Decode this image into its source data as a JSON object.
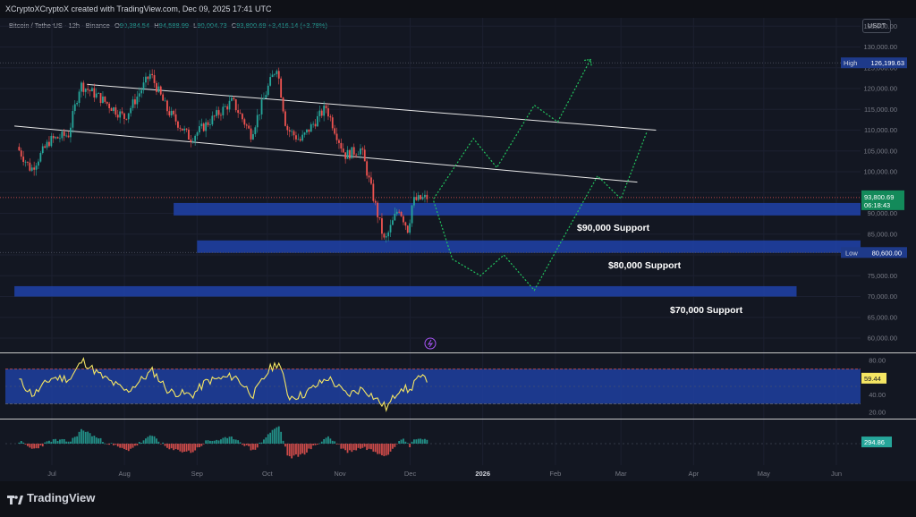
{
  "header": {
    "credit": "XCryptoXCryptoX created with TradingView.com, Dec 09, 2025 17:41 UTC",
    "symbol": "Bitcoin / TetherUS · 12h · Binance",
    "ohlc": [
      {
        "label": "O",
        "value": "90,384.54"
      },
      {
        "label": "H",
        "value": "94,588.99"
      },
      {
        "label": "L",
        "value": "90,004.73"
      },
      {
        "label": "C",
        "value": "93,800.69"
      }
    ],
    "change": "+3,416.14 (+3.78%)",
    "currency": "USDT"
  },
  "footer": {
    "brand": "TradingView"
  },
  "colors": {
    "background": "#131722",
    "up": "#26a69a",
    "down": "#ef5350",
    "zone": "#1e3fa0",
    "projection": "#22c55e",
    "rsi": "#f5e663"
  },
  "chart_data": [
    {
      "type": "candlestick",
      "ylim": [
        57000,
        137000
      ],
      "x_ticks": [
        "Jul",
        "Aug",
        "Sep",
        "Oct",
        "Nov",
        "Dec",
        "2026",
        "Feb",
        "Mar",
        "Apr",
        "May",
        "Jun"
      ],
      "y_ticks": [
        "60,000.00",
        "65,000.00",
        "70,000.00",
        "75,000.00",
        "80,000.00",
        "85,000.00",
        "90,000.00",
        "95,000.00",
        "100,000.00",
        "105,000.00",
        "110,000.00",
        "115,000.00",
        "120,000.00",
        "125,000.00",
        "130,000.00",
        "135,000.00"
      ],
      "price_path": [
        [
          "2025-06-17",
          106000
        ],
        [
          "2025-06-23",
          100500
        ],
        [
          "2025-07-01",
          107500
        ],
        [
          "2025-07-09",
          109000
        ],
        [
          "2025-07-14",
          121000
        ],
        [
          "2025-07-22",
          118000
        ],
        [
          "2025-08-02",
          113000
        ],
        [
          "2025-08-13",
          123500
        ],
        [
          "2025-08-20",
          115000
        ],
        [
          "2025-08-30",
          108000
        ],
        [
          "2025-09-05",
          111000
        ],
        [
          "2025-09-17",
          117000
        ],
        [
          "2025-09-25",
          109000
        ],
        [
          "2025-10-02",
          120000
        ],
        [
          "2025-10-06",
          125500
        ],
        [
          "2025-10-10",
          110500
        ],
        [
          "2025-10-16",
          107500
        ],
        [
          "2025-10-27",
          115500
        ],
        [
          "2025-11-04",
          104000
        ],
        [
          "2025-11-11",
          105500
        ],
        [
          "2025-11-21",
          83000
        ],
        [
          "2025-11-27",
          91500
        ],
        [
          "2025-12-01",
          86000
        ],
        [
          "2025-12-03",
          93000
        ],
        [
          "2025-12-09",
          93800
        ]
      ],
      "channel_lines": [
        {
          "from": [
            "2025-07-16",
            121000
          ],
          "to": [
            "2026-03-16",
            110000
          ]
        },
        {
          "from": [
            "2025-06-15",
            111000
          ],
          "to": [
            "2026-03-08",
            97500
          ]
        }
      ],
      "support_zones": [
        {
          "label": "$90,000 Support",
          "from": "2025-08-22",
          "low": 89500,
          "high": 92500
        },
        {
          "label": "$80,000 Support",
          "from": "2025-09-01",
          "low": 80500,
          "high": 83500
        },
        {
          "label": "$70,000 Support",
          "from": "2025-06-15",
          "to": "2026-05-15",
          "low": 70000,
          "high": 72500
        }
      ],
      "projection_bullish": [
        [
          "2025-12-11",
          93500
        ],
        [
          "2025-12-28",
          108000
        ],
        [
          "2026-01-07",
          101000
        ],
        [
          "2026-01-23",
          116000
        ],
        [
          "2026-02-02",
          112000
        ],
        [
          "2026-02-16",
          127000
        ]
      ],
      "projection_bearish": [
        [
          "2025-12-11",
          93000
        ],
        [
          "2025-12-19",
          79000
        ],
        [
          "2025-12-31",
          75000
        ],
        [
          "2026-01-10",
          80000
        ],
        [
          "2026-01-23",
          71500
        ],
        [
          "2026-02-19",
          99000
        ],
        [
          "2026-02-29",
          93500
        ],
        [
          "2026-03-12",
          109500
        ]
      ],
      "markers": [
        {
          "label": "High",
          "value": "126,199.63",
          "price": 126199.63
        },
        {
          "label": "Low",
          "value": "80,600.00",
          "price": 80600
        },
        {
          "label": "",
          "value": "93,800.69",
          "price": 93800.69
        },
        {
          "label": "",
          "value": "06:18:43",
          "price": 93800.69
        }
      ]
    },
    {
      "type": "line",
      "ylim": [
        15,
        85
      ],
      "y_ticks": [
        "80.00",
        "60.00",
        "40.00",
        "20.00"
      ],
      "band": [
        30,
        70
      ],
      "current": "59.44",
      "current_value": 59.44,
      "path": [
        [
          "2025-06-17",
          57
        ],
        [
          "2025-06-23",
          40
        ],
        [
          "2025-07-01",
          60
        ],
        [
          "2025-07-09",
          59
        ],
        [
          "2025-07-14",
          80
        ],
        [
          "2025-07-22",
          62
        ],
        [
          "2025-08-02",
          44
        ],
        [
          "2025-08-13",
          68
        ],
        [
          "2025-08-20",
          44
        ],
        [
          "2025-08-30",
          40
        ],
        [
          "2025-09-05",
          56
        ],
        [
          "2025-09-17",
          62
        ],
        [
          "2025-09-25",
          40
        ],
        [
          "2025-10-02",
          70
        ],
        [
          "2025-10-06",
          78
        ],
        [
          "2025-10-10",
          38
        ],
        [
          "2025-10-16",
          40
        ],
        [
          "2025-10-27",
          60
        ],
        [
          "2025-11-04",
          40
        ],
        [
          "2025-11-11",
          48
        ],
        [
          "2025-11-21",
          25
        ],
        [
          "2025-11-27",
          50
        ],
        [
          "2025-12-01",
          44
        ],
        [
          "2025-12-03",
          58
        ],
        [
          "2025-12-09",
          59.44
        ]
      ]
    },
    {
      "type": "bar",
      "ylim": [
        -1800,
        1800
      ],
      "y_ticks": [
        "0.00"
      ],
      "current": "294.86",
      "current_value": 294.86,
      "path": [
        [
          "2025-06-17",
          200
        ],
        [
          "2025-06-23",
          -500
        ],
        [
          "2025-07-01",
          300
        ],
        [
          "2025-07-09",
          200
        ],
        [
          "2025-07-14",
          1200
        ],
        [
          "2025-07-22",
          300
        ],
        [
          "2025-08-02",
          -600
        ],
        [
          "2025-08-13",
          700
        ],
        [
          "2025-08-20",
          -500
        ],
        [
          "2025-08-30",
          -700
        ],
        [
          "2025-09-05",
          200
        ],
        [
          "2025-09-17",
          500
        ],
        [
          "2025-09-25",
          -600
        ],
        [
          "2025-10-02",
          900
        ],
        [
          "2025-10-06",
          1500
        ],
        [
          "2025-10-10",
          -1200
        ],
        [
          "2025-10-16",
          -900
        ],
        [
          "2025-10-27",
          600
        ],
        [
          "2025-11-04",
          -700
        ],
        [
          "2025-11-11",
          -300
        ],
        [
          "2025-11-21",
          -1000
        ],
        [
          "2025-11-27",
          500
        ],
        [
          "2025-12-01",
          -200
        ],
        [
          "2025-12-03",
          500
        ],
        [
          "2025-12-09",
          294.86
        ]
      ]
    }
  ]
}
